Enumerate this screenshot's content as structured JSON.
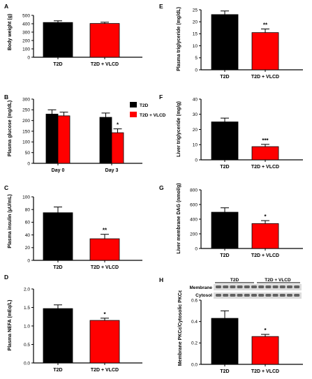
{
  "colors": {
    "t2d": "#000000",
    "vlcd": "#ff0000",
    "axis": "#000000"
  },
  "blot": {
    "membrane_label": "Membrane",
    "cytosol_label": "Cytosol",
    "group1": "T2D",
    "group2": "T2D + VLCD"
  },
  "chart_data": [
    {
      "panel": "A",
      "type": "bar",
      "categories": [
        "T2D",
        "T2D + VLCD"
      ],
      "values": [
        415,
        403
      ],
      "errors": [
        20,
        15
      ],
      "significance": [
        "",
        ""
      ],
      "ylabel": "Body weight (g)",
      "ylim": [
        0,
        500
      ],
      "yticks": [
        0,
        100,
        200,
        300,
        400,
        500
      ]
    },
    {
      "panel": "B",
      "type": "bar",
      "categories": [
        "Day 0",
        "Day 3"
      ],
      "series": [
        {
          "name": "T2D",
          "values": [
            230,
            215
          ],
          "errors": [
            20,
            20
          ],
          "significance": [
            "",
            ""
          ]
        },
        {
          "name": "T2D + VLCD",
          "values": [
            222,
            143
          ],
          "errors": [
            17,
            18
          ],
          "significance": [
            "",
            "*"
          ]
        }
      ],
      "ylabel": "Plasma glucose (mg/dL)",
      "ylim": [
        0,
        300
      ],
      "yticks": [
        0,
        50,
        100,
        150,
        200,
        250,
        300
      ],
      "legend": "top-right"
    },
    {
      "panel": "C",
      "type": "bar",
      "categories": [
        "T2D",
        "T2D + VLCD"
      ],
      "values": [
        75,
        34
      ],
      "errors": [
        9,
        7
      ],
      "significance": [
        "",
        "**"
      ],
      "ylabel": "Plasma insulin (μU/mL)",
      "ylim": [
        0,
        100
      ],
      "yticks": [
        0,
        20,
        40,
        60,
        80,
        100
      ]
    },
    {
      "panel": "D",
      "type": "bar",
      "categories": [
        "T2D",
        "T2D + VLCD"
      ],
      "values": [
        1.47,
        1.15
      ],
      "errors": [
        0.1,
        0.06
      ],
      "significance": [
        "",
        "*"
      ],
      "ylabel": "Plasma NEFA (mEq/L)",
      "ylim": [
        0,
        2.0
      ],
      "yticks": [
        "0.0",
        "0.5",
        "1.0",
        "1.5",
        "2.0"
      ]
    },
    {
      "panel": "E",
      "type": "bar",
      "categories": [
        "T2D",
        "T2D + VLCD"
      ],
      "values": [
        23,
        15.5
      ],
      "errors": [
        1.5,
        1.5
      ],
      "significance": [
        "",
        "**"
      ],
      "ylabel": "Plasma triglyceride (mg/dL)",
      "ylim": [
        0,
        25
      ],
      "yticks": [
        0,
        5,
        10,
        15,
        20,
        25
      ]
    },
    {
      "panel": "F",
      "type": "bar",
      "categories": [
        "T2D",
        "T2D + VLCD"
      ],
      "values": [
        25,
        8.7
      ],
      "errors": [
        2.5,
        1.5
      ],
      "significance": [
        "",
        "***"
      ],
      "ylabel": "Liver triglyceride (mg/g)",
      "ylim": [
        0,
        40
      ],
      "yticks": [
        0,
        10,
        20,
        30,
        40
      ]
    },
    {
      "panel": "G",
      "type": "bar",
      "categories": [
        "T2D",
        "T2D + VLCD"
      ],
      "values": [
        495,
        340
      ],
      "errors": [
        60,
        40
      ],
      "significance": [
        "",
        "*"
      ],
      "ylabel": "Liver membrane DAG (nmol/g)",
      "ylim": [
        0,
        800
      ],
      "yticks": [
        0,
        200,
        400,
        600,
        800
      ]
    },
    {
      "panel": "H",
      "type": "bar",
      "categories": [
        "T2D",
        "T2D + VLCD"
      ],
      "values": [
        0.43,
        0.26
      ],
      "errors": [
        0.07,
        0.02
      ],
      "significance": [
        "",
        "*"
      ],
      "ylabel": "Membrane PKCε/Cytosolic PKCε",
      "ylim": [
        0,
        0.6
      ],
      "yticks": [
        "0.0",
        "0.2",
        "0.4",
        "0.6"
      ]
    }
  ]
}
